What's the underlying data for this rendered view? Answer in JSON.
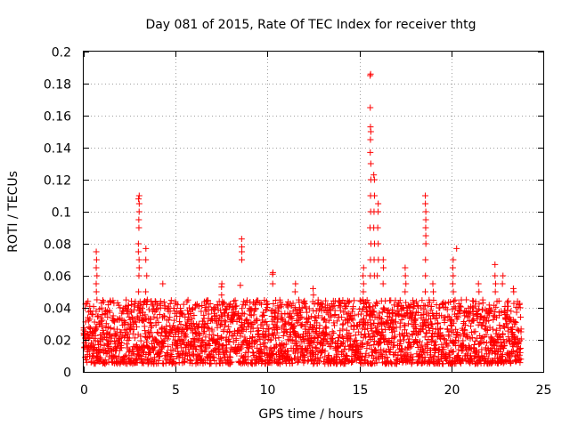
{
  "chart_data": {
    "type": "scatter",
    "title": "Day 081 of 2015, Rate Of TEC Index for receiver thtg",
    "xlabel": "GPS time / hours",
    "ylabel": "ROTI / TECUs",
    "xlim": [
      0,
      25
    ],
    "ylim": [
      0,
      0.2
    ],
    "x_ticks": [
      0,
      5,
      10,
      15,
      20,
      25
    ],
    "x_tick_labels": [
      "0",
      "5",
      "10",
      "15",
      "20",
      "25"
    ],
    "y_ticks": [
      0,
      0.02,
      0.04,
      0.06,
      0.08,
      0.1,
      0.12,
      0.14,
      0.16,
      0.18,
      0.2
    ],
    "y_tick_labels": [
      "0",
      "0.02",
      "0.04",
      "0.06",
      "0.08",
      "0.1",
      "0.12",
      "0.14",
      "0.16",
      "0.18",
      "0.2"
    ],
    "grid": true,
    "marker": "+",
    "series": [
      {
        "name": "ROTI",
        "color": "#ff0000",
        "x_range": [
          0,
          23.8
        ],
        "baseline_band": [
          0.005,
          0.045
        ],
        "spikes": [
          {
            "x": 0.7,
            "y": [
              0.045,
              0.05,
              0.055,
              0.06,
              0.065,
              0.07,
              0.075
            ]
          },
          {
            "x": 3.0,
            "y": [
              0.05,
              0.06,
              0.065,
              0.07,
              0.075,
              0.08,
              0.09,
              0.095,
              0.1,
              0.105,
              0.108,
              0.11
            ]
          },
          {
            "x": 3.4,
            "y": [
              0.05,
              0.06,
              0.07,
              0.077
            ]
          },
          {
            "x": 4.3,
            "y": [
              0.055
            ]
          },
          {
            "x": 7.5,
            "y": [
              0.048,
              0.053,
              0.055
            ]
          },
          {
            "x": 8.5,
            "y": [
              0.054
            ]
          },
          {
            "x": 8.6,
            "y": [
              0.07,
              0.075,
              0.078,
              0.083
            ]
          },
          {
            "x": 10.3,
            "y": [
              0.055,
              0.061,
              0.062
            ]
          },
          {
            "x": 11.5,
            "y": [
              0.05,
              0.055
            ]
          },
          {
            "x": 12.5,
            "y": [
              0.048,
              0.052
            ]
          },
          {
            "x": 15.2,
            "y": [
              0.045,
              0.05,
              0.055,
              0.06,
              0.065
            ]
          },
          {
            "x": 15.6,
            "y": [
              0.06,
              0.07,
              0.08,
              0.09,
              0.1,
              0.11,
              0.12,
              0.13,
              0.137,
              0.145,
              0.15,
              0.153,
              0.165,
              0.185,
              0.186
            ]
          },
          {
            "x": 15.8,
            "y": [
              0.06,
              0.07,
              0.08,
              0.09,
              0.1,
              0.11,
              0.12,
              0.123
            ]
          },
          {
            "x": 16.0,
            "y": [
              0.06,
              0.07,
              0.08,
              0.09,
              0.1,
              0.105
            ]
          },
          {
            "x": 16.3,
            "y": [
              0.055,
              0.065,
              0.07
            ]
          },
          {
            "x": 17.5,
            "y": [
              0.05,
              0.055,
              0.06,
              0.065
            ]
          },
          {
            "x": 18.6,
            "y": [
              0.05,
              0.06,
              0.07,
              0.08,
              0.085,
              0.09,
              0.095,
              0.1,
              0.105,
              0.11
            ]
          },
          {
            "x": 19.0,
            "y": [
              0.05,
              0.055
            ]
          },
          {
            "x": 20.1,
            "y": [
              0.05,
              0.055,
              0.06,
              0.065,
              0.07
            ]
          },
          {
            "x": 20.3,
            "y": [
              0.077
            ]
          },
          {
            "x": 21.5,
            "y": [
              0.05,
              0.055
            ]
          },
          {
            "x": 22.4,
            "y": [
              0.05,
              0.055,
              0.06,
              0.067
            ]
          },
          {
            "x": 22.8,
            "y": [
              0.055,
              0.06
            ]
          },
          {
            "x": 23.4,
            "y": [
              0.05,
              0.052
            ]
          }
        ]
      }
    ]
  }
}
